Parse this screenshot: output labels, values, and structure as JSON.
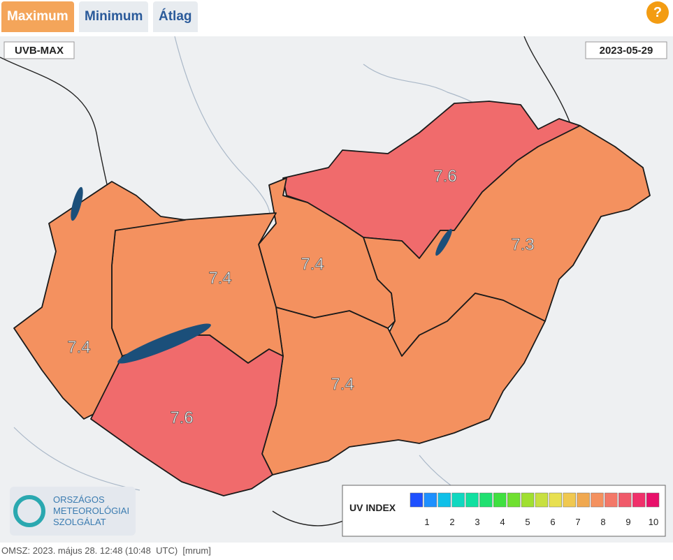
{
  "tabs": [
    "Maximum",
    "Minimum",
    "Átlag"
  ],
  "help": "?",
  "map": {
    "product": "UVB-MAX",
    "date": "2023-05-29",
    "regions": [
      {
        "label": 7.6,
        "color": "#f06b6c"
      },
      {
        "label": 7.3,
        "color": "#f4915f"
      },
      {
        "label": 7.4,
        "color": "#f4915f"
      },
      {
        "label": 7.4,
        "color": "#f4915f"
      },
      {
        "label": 7.4,
        "color": "#f4915f"
      },
      {
        "label": 7.4,
        "color": "#f4915f"
      },
      {
        "label": 7.6,
        "color": "#f06b6c"
      }
    ]
  },
  "legend": {
    "title": "UV INDEX",
    "ticks": [
      1,
      2,
      3,
      4,
      5,
      6,
      7,
      8,
      9,
      10
    ]
  },
  "logo": [
    "ORSZÁGOS",
    "METEOROLÓGIAI",
    "SZOLGÁLAT"
  ],
  "footer": "OMSZ: 2023. május 28. 12:48 (10:48  UTC)  [mrum]"
}
